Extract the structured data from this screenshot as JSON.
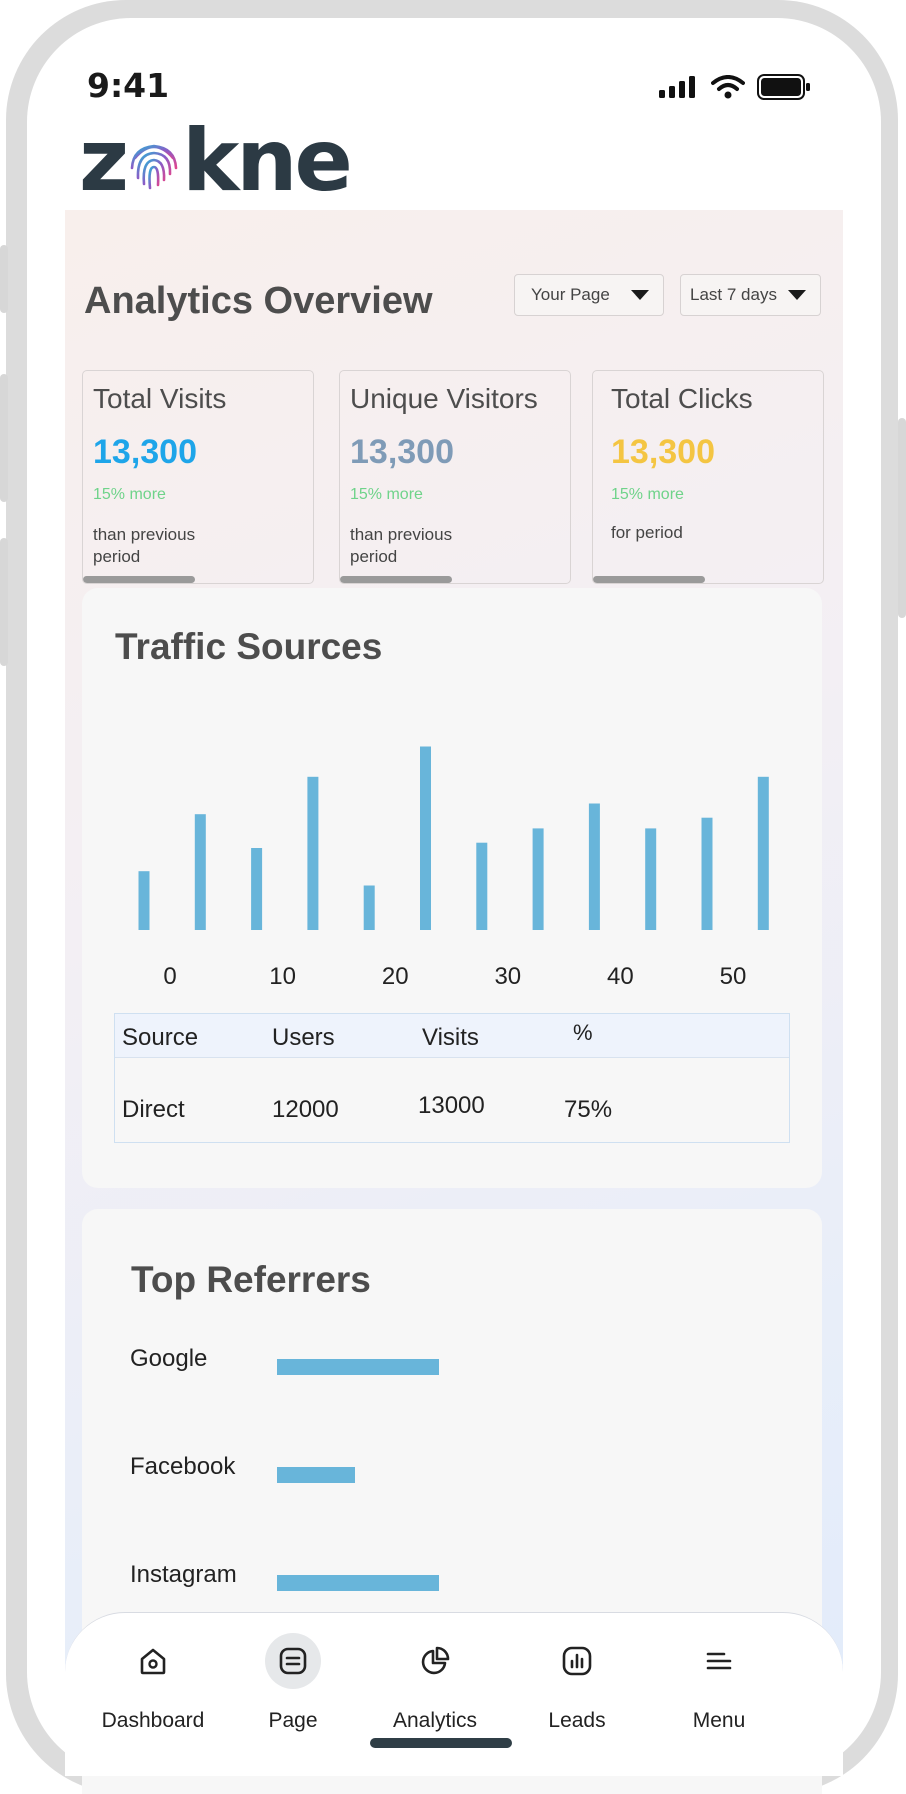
{
  "status_bar": {
    "time": "9:41"
  },
  "brand": {
    "logo_left": "z",
    "logo_right": "kne"
  },
  "header": {
    "title": "Analytics Overview",
    "page_select": "Your Page",
    "period_select": "Last 7 days"
  },
  "stats": [
    {
      "label": "Total Visits",
      "value": "13,300",
      "change": "15% more",
      "note": "than previous period",
      "color": "#1ea5e9"
    },
    {
      "label": "Unique Visitors",
      "value": "13,300",
      "change": "15% more",
      "note": "than previous period",
      "color": "#7f9bb7"
    },
    {
      "label": "Total Clicks",
      "value": "13,300",
      "change": "15% more",
      "note": "for period",
      "color": "#f4c542"
    }
  ],
  "traffic": {
    "title": "Traffic Sources",
    "table": {
      "headers": [
        "Source",
        "Users",
        "Visits",
        "%"
      ],
      "rows": [
        [
          "Direct",
          "12000",
          "13000",
          "75%"
        ]
      ]
    }
  },
  "chart_data": {
    "type": "bar",
    "x_ticks": [
      "0",
      "10",
      "20",
      "30",
      "40",
      "50"
    ],
    "values": [
      33,
      65,
      46,
      86,
      25,
      103,
      49,
      57,
      71,
      57,
      63,
      86
    ],
    "ylim": [
      0,
      110
    ],
    "color": "#68b5da"
  },
  "referrers": {
    "title": "Top Referrers",
    "items": [
      {
        "name": "Google",
        "value": 100
      },
      {
        "name": "Facebook",
        "value": 48
      },
      {
        "name": "Instagram",
        "value": 100
      }
    ],
    "color": "#68b5da"
  },
  "nav": {
    "items": [
      {
        "label": "Dashboard",
        "icon": "home-icon"
      },
      {
        "label": "Page",
        "icon": "page-icon"
      },
      {
        "label": "Analytics",
        "icon": "pie-chart-icon"
      },
      {
        "label": "Leads",
        "icon": "bar-chart-icon"
      },
      {
        "label": "Menu",
        "icon": "menu-icon"
      }
    ]
  }
}
